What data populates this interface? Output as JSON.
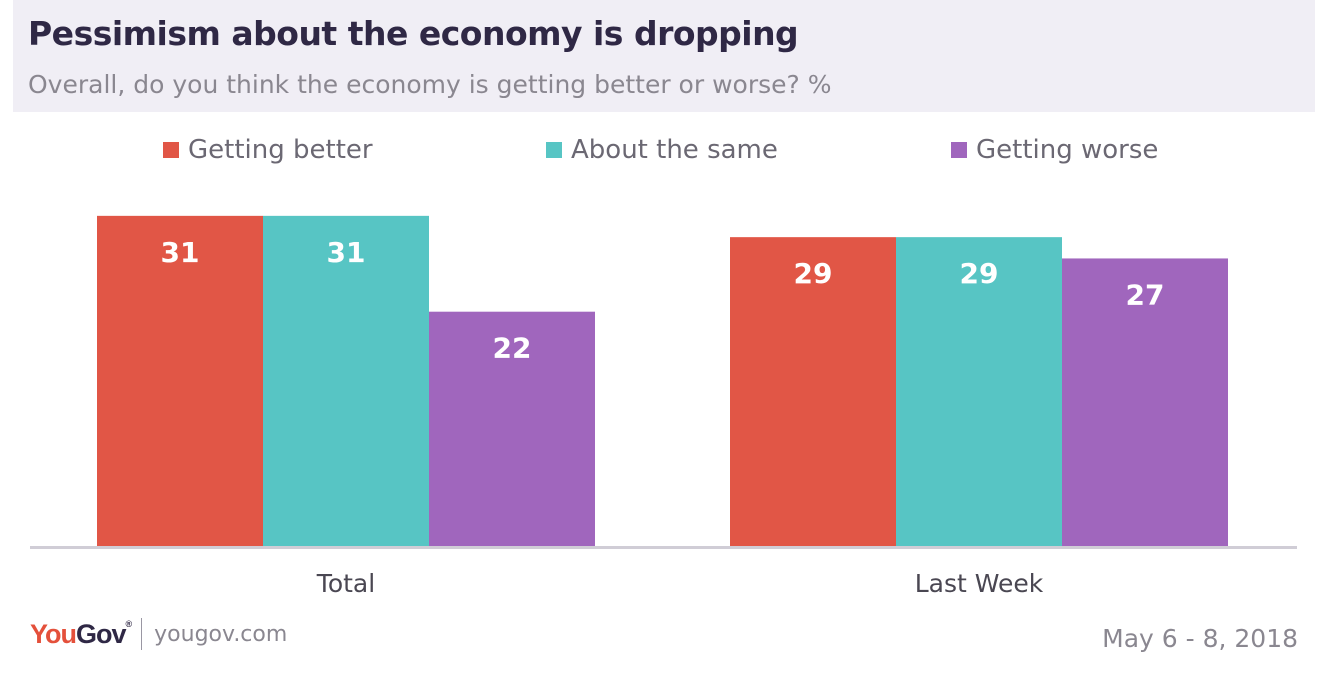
{
  "title": "Pessimism about the economy is dropping",
  "subtitle": "Overall, do you think the economy is getting better or worse? %",
  "footer": {
    "logo_you": "You",
    "logo_gov": "Gov",
    "logo_reg": "®",
    "site": "yougov.com",
    "date": "May 6 - 8, 2018"
  },
  "colors": {
    "getting_better": "#e15646",
    "about_the_same": "#57c5c4",
    "getting_worse": "#a066bd"
  },
  "chart_data": {
    "type": "bar",
    "title": "Pessimism about the economy is dropping",
    "subtitle": "Overall, do you think the economy is getting better or worse? %",
    "categories": [
      "Total",
      "Last Week"
    ],
    "series": [
      {
        "name": "Getting better",
        "values": [
          31,
          29
        ],
        "color": "#e15646"
      },
      {
        "name": "About the same",
        "values": [
          31,
          29
        ],
        "color": "#57c5c4"
      },
      {
        "name": "Getting worse",
        "values": [
          22,
          27
        ],
        "color": "#a066bd"
      }
    ],
    "xlabel": "",
    "ylabel": "",
    "ylim": [
      0,
      36
    ],
    "grid": false,
    "legend": "top-center"
  }
}
